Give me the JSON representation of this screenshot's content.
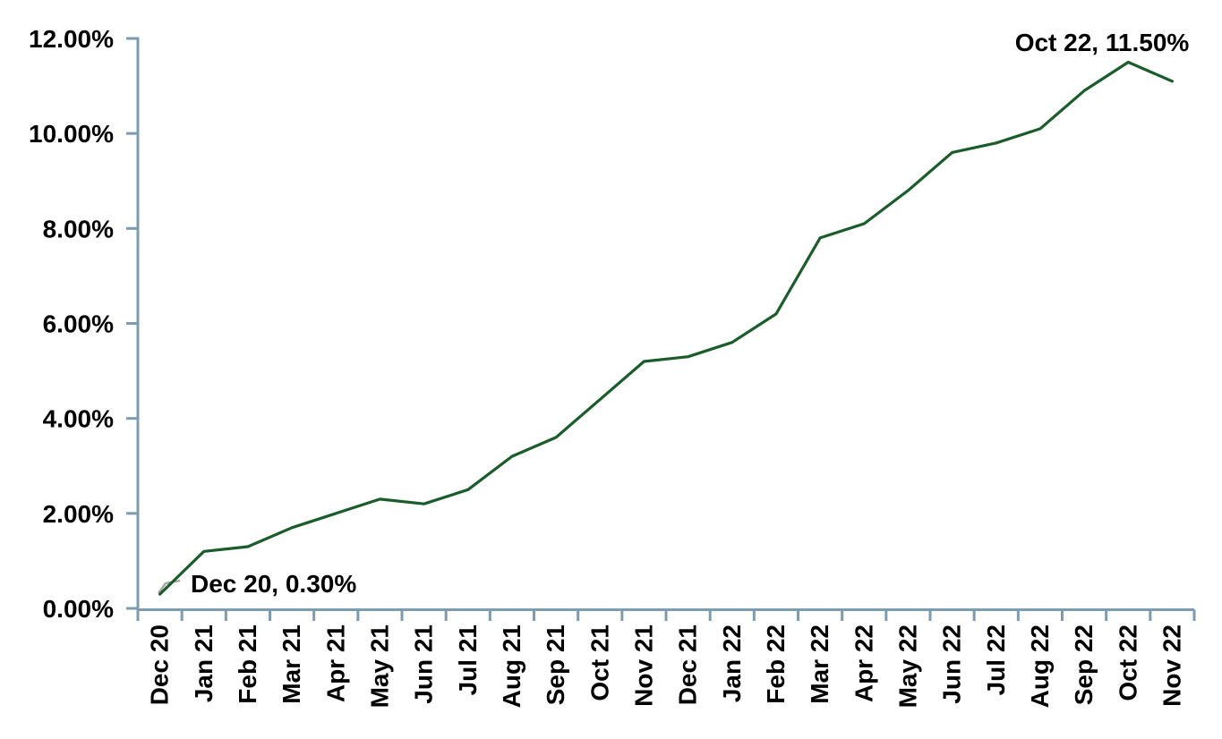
{
  "page": {
    "background": "#ffffff"
  },
  "chart_data": {
    "type": "line",
    "title": "",
    "xlabel": "",
    "ylabel": "",
    "unit": "%",
    "categories": [
      "Dec 20",
      "Jan 21",
      "Feb 21",
      "Mar 21",
      "Apr 21",
      "May 21",
      "Jun 21",
      "Jul 21",
      "Aug 21",
      "Sep 21",
      "Oct 21",
      "Nov 21",
      "Dec 21",
      "Jan 22",
      "Feb 22",
      "Mar 22",
      "Apr 22",
      "May 22",
      "Jun 22",
      "Jul 22",
      "Aug 22",
      "Sep 22",
      "Oct 22",
      "Nov 22"
    ],
    "values": [
      0.3,
      1.2,
      1.3,
      1.7,
      2.0,
      2.3,
      2.2,
      2.5,
      3.2,
      3.6,
      4.4,
      5.2,
      5.3,
      5.6,
      6.2,
      7.8,
      8.1,
      8.8,
      9.6,
      9.8,
      10.1,
      10.9,
      11.5,
      11.1
    ],
    "ylim": [
      0,
      12
    ],
    "y_tick_labels": [
      "0.00%",
      "2.00%",
      "4.00%",
      "6.00%",
      "8.00%",
      "10.00%",
      "12.00%"
    ],
    "grid": false,
    "legend": "none",
    "colors": {
      "line": "#1A5C2A",
      "axis": "#7D9CB0",
      "text": "#000000",
      "leader": "#A8A8A8"
    },
    "annotations": [
      {
        "text": "Dec 20, 0.30%",
        "category": "Dec 20",
        "value": 0.3
      },
      {
        "text": "Oct 22, 11.50%",
        "category": "Oct 22",
        "value": 11.5
      }
    ]
  }
}
